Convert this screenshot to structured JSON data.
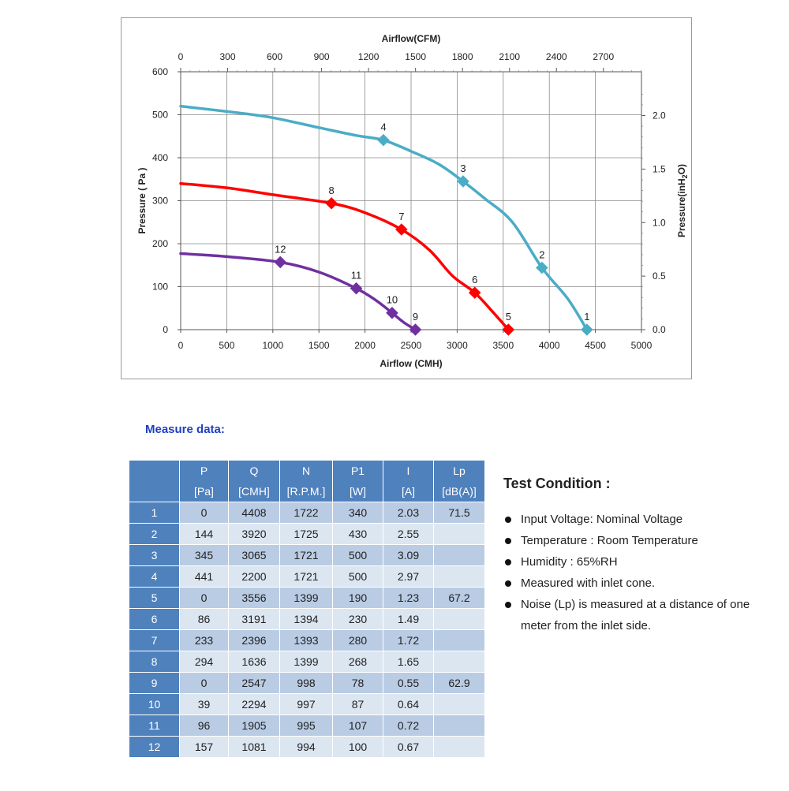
{
  "chart_data": {
    "type": "line",
    "top_axis": {
      "title": "Airflow(CFM)",
      "ticks": [
        "0",
        "300",
        "600",
        "900",
        "1200",
        "1500",
        "1800",
        "2100",
        "2400",
        "2700"
      ],
      "unit_per_cmh": 0.5886
    },
    "xlabel": "Airflow (CMH)",
    "xticks": [
      "0",
      "500",
      "1000",
      "1500",
      "2000",
      "2500",
      "3000",
      "3500",
      "4000",
      "4500",
      "5000"
    ],
    "xlim": [
      0,
      5000
    ],
    "ylabel": "Pressure ( Pa )",
    "yticks": [
      "0",
      "100",
      "200",
      "300",
      "400",
      "500",
      "600"
    ],
    "ylim": [
      0,
      600
    ],
    "right_axis": {
      "title_prefix": "Pressure(inH",
      "title_sub": "2",
      "title_suffix": "O)",
      "ticks": [
        "0.0",
        "0.5",
        "1.0",
        "1.5",
        "2.0"
      ],
      "unit_per_pa": 0.004015
    },
    "grid": true,
    "series": [
      {
        "color": "#4bacc6",
        "curve": [
          [
            0,
            520
          ],
          [
            600,
            505
          ],
          [
            1000,
            493
          ],
          [
            1500,
            470
          ],
          [
            1900,
            452
          ],
          [
            2200,
            441
          ],
          [
            2500,
            415
          ],
          [
            2800,
            385
          ],
          [
            3065,
            345
          ],
          [
            3300,
            305
          ],
          [
            3600,
            250
          ],
          [
            3920,
            144
          ],
          [
            4200,
            72
          ],
          [
            4408,
            0
          ]
        ],
        "points": [
          {
            "label": "4",
            "x": 2200,
            "y": 441
          },
          {
            "label": "3",
            "x": 3065,
            "y": 345
          },
          {
            "label": "2",
            "x": 3920,
            "y": 144
          },
          {
            "label": "1",
            "x": 4408,
            "y": 0
          }
        ]
      },
      {
        "color": "#ff0000",
        "curve": [
          [
            0,
            340
          ],
          [
            500,
            330
          ],
          [
            1000,
            314
          ],
          [
            1636,
            294
          ],
          [
            2000,
            272
          ],
          [
            2396,
            233
          ],
          [
            2700,
            185
          ],
          [
            2950,
            125
          ],
          [
            3191,
            86
          ],
          [
            3400,
            38
          ],
          [
            3556,
            0
          ]
        ],
        "points": [
          {
            "label": "8",
            "x": 1636,
            "y": 294
          },
          {
            "label": "7",
            "x": 2396,
            "y": 233
          },
          {
            "label": "6",
            "x": 3191,
            "y": 86
          },
          {
            "label": "5",
            "x": 3556,
            "y": 0
          }
        ]
      },
      {
        "color": "#7030a0",
        "curve": [
          [
            0,
            177
          ],
          [
            500,
            170
          ],
          [
            1081,
            157
          ],
          [
            1500,
            134
          ],
          [
            1905,
            96
          ],
          [
            2120,
            68
          ],
          [
            2294,
            39
          ],
          [
            2420,
            17
          ],
          [
            2547,
            0
          ]
        ],
        "points": [
          {
            "label": "12",
            "x": 1081,
            "y": 157
          },
          {
            "label": "11",
            "x": 1905,
            "y": 96
          },
          {
            "label": "10",
            "x": 2294,
            "y": 39
          },
          {
            "label": "9",
            "x": 2547,
            "y": 0
          }
        ]
      }
    ]
  },
  "measure_title": "Measure data:",
  "table": {
    "headers": [
      {
        "top": "P",
        "bottom": "[Pa]"
      },
      {
        "top": "Q",
        "bottom": "[CMH]"
      },
      {
        "top": "N",
        "bottom": "[R.P.M.]"
      },
      {
        "top": "P1",
        "bottom": "[W]"
      },
      {
        "top": "I",
        "bottom": "[A]"
      },
      {
        "top": "Lp",
        "bottom": "[dB(A)]"
      }
    ],
    "rows": [
      {
        "label": "1",
        "cells": [
          "0",
          "4408",
          "1722",
          "340",
          "2.03",
          "71.5"
        ]
      },
      {
        "label": "2",
        "cells": [
          "144",
          "3920",
          "1725",
          "430",
          "2.55",
          ""
        ]
      },
      {
        "label": "3",
        "cells": [
          "345",
          "3065",
          "1721",
          "500",
          "3.09",
          ""
        ]
      },
      {
        "label": "4",
        "cells": [
          "441",
          "2200",
          "1721",
          "500",
          "2.97",
          ""
        ]
      },
      {
        "label": "5",
        "cells": [
          "0",
          "3556",
          "1399",
          "190",
          "1.23",
          "67.2"
        ]
      },
      {
        "label": "6",
        "cells": [
          "86",
          "3191",
          "1394",
          "230",
          "1.49",
          ""
        ]
      },
      {
        "label": "7",
        "cells": [
          "233",
          "2396",
          "1393",
          "280",
          "1.72",
          ""
        ]
      },
      {
        "label": "8",
        "cells": [
          "294",
          "1636",
          "1399",
          "268",
          "1.65",
          ""
        ]
      },
      {
        "label": "9",
        "cells": [
          "0",
          "2547",
          "998",
          "78",
          "0.55",
          "62.9"
        ]
      },
      {
        "label": "10",
        "cells": [
          "39",
          "2294",
          "997",
          "87",
          "0.64",
          ""
        ]
      },
      {
        "label": "11",
        "cells": [
          "96",
          "1905",
          "995",
          "107",
          "0.72",
          ""
        ]
      },
      {
        "label": "12",
        "cells": [
          "157",
          "1081",
          "994",
          "100",
          "0.67",
          ""
        ]
      }
    ]
  },
  "test_condition": {
    "title": "Test Condition :",
    "items": [
      "Input Voltage: Nominal Voltage",
      "Temperature : Room Temperature",
      "Humidity : 65%RH",
      "Measured with inlet cone.",
      "Noise (Lp) is measured at a distance of one meter from the inlet side."
    ]
  }
}
